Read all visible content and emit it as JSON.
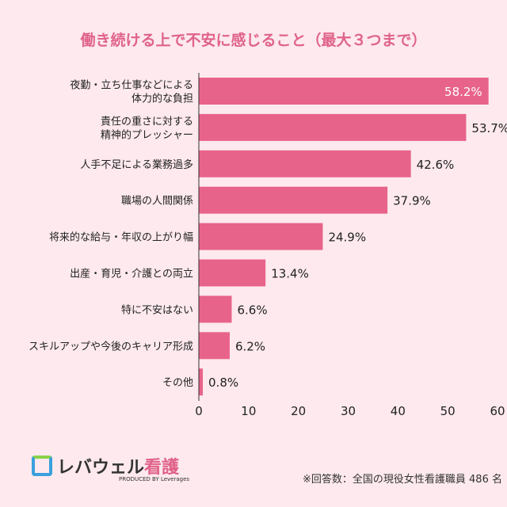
{
  "title": "働き続ける上で不安に感じること（最大３つまで）",
  "chart_data": {
    "type": "bar",
    "orientation": "horizontal",
    "title": "働き続ける上で不安に感じること（最大３つまで）",
    "categories": [
      [
        "夜勤・立ち仕事などによる",
        "体力的な負担"
      ],
      [
        "責任の重さに対する",
        "精神的プレッシャー"
      ],
      [
        "人手不足による業務過多"
      ],
      [
        "職場の人間関係"
      ],
      [
        "将来的な給与・年収の上がり幅"
      ],
      [
        "出産・育児・介護との両立"
      ],
      [
        "特に不安はない"
      ],
      [
        "スキルアップや今後のキャリア形成"
      ],
      [
        "その他"
      ]
    ],
    "values": [
      58.2,
      53.7,
      42.6,
      37.9,
      24.9,
      13.4,
      6.6,
      6.2,
      0.8
    ],
    "value_labels": [
      "58.2%",
      "53.7%",
      "42.6%",
      "37.9%",
      "24.9%",
      "13.4%",
      "6.6%",
      "6.2%",
      "0.8%"
    ],
    "xlim": [
      0,
      60
    ],
    "xticks": [
      "0",
      "10",
      "20",
      "30",
      "40",
      "50",
      "60"
    ],
    "bar_color": "#e8638a",
    "grid": false
  },
  "logo": {
    "name_dark": "レバウェル",
    "name_pink": "看護",
    "sub": "PRODUCED BY Leverages"
  },
  "note": "※回答数：全国の現役女性看護職員 486 名"
}
